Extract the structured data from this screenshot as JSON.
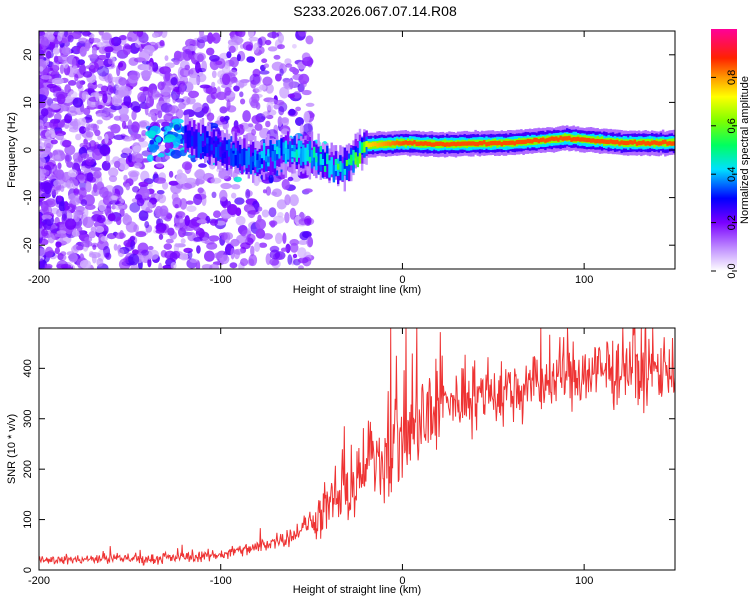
{
  "title": "S233.2026.067.07.14.R08",
  "chart_data": [
    {
      "type": "heatmap",
      "xlabel": "Height of straight line (km)",
      "ylabel": "Frequency (Hz)",
      "xlim": [
        -200,
        150
      ],
      "ylim": [
        -25,
        25
      ],
      "x_ticks": [
        -200,
        -100,
        0,
        100
      ],
      "y_ticks": [
        -20,
        -10,
        0,
        10,
        20
      ],
      "colorbar": {
        "label": "Normalized spectral amplitude",
        "range": [
          0,
          1
        ],
        "ticks": [
          0.0,
          0.2,
          0.4,
          0.6,
          0.8
        ],
        "tick_labels": [
          "0.0",
          "0.2",
          "0.4",
          "0.6",
          "0.8"
        ]
      },
      "ridge": {
        "description_points_x": [
          -200,
          -150,
          -120,
          -100,
          -80,
          -60,
          -45,
          -35,
          -20,
          0,
          20,
          60,
          90,
          120,
          150
        ],
        "peak_frequency_hz": [
          3,
          2,
          3,
          0,
          -2,
          0,
          -2,
          -4,
          1,
          1.5,
          1.2,
          1.5,
          2.5,
          1.5,
          1.5
        ],
        "peak_amplitude": [
          0.3,
          0.3,
          0.35,
          0.35,
          0.4,
          0.5,
          0.55,
          0.6,
          0.75,
          0.85,
          0.85,
          0.9,
          0.95,
          0.9,
          0.9
        ]
      }
    },
    {
      "type": "line",
      "xlabel": "Height of straight line (km)",
      "ylabel": "SNR (10 * v/v)",
      "xlim": [
        -200,
        150
      ],
      "ylim": [
        0,
        480
      ],
      "x_ticks": [
        -200,
        -100,
        0,
        100
      ],
      "y_ticks": [
        0,
        100,
        200,
        300,
        400
      ],
      "series": [
        {
          "name": "SNR",
          "color": "#ee3333",
          "x": [
            -200,
            -180,
            -160,
            -140,
            -120,
            -100,
            -80,
            -60,
            -45,
            -30,
            -20,
            -10,
            0,
            10,
            20,
            30,
            40,
            60,
            80,
            100,
            120,
            150
          ],
          "values": [
            20,
            20,
            22,
            22,
            25,
            30,
            45,
            70,
            110,
            150,
            200,
            230,
            260,
            290,
            320,
            335,
            345,
            355,
            375,
            385,
            395,
            400
          ]
        }
      ]
    }
  ]
}
